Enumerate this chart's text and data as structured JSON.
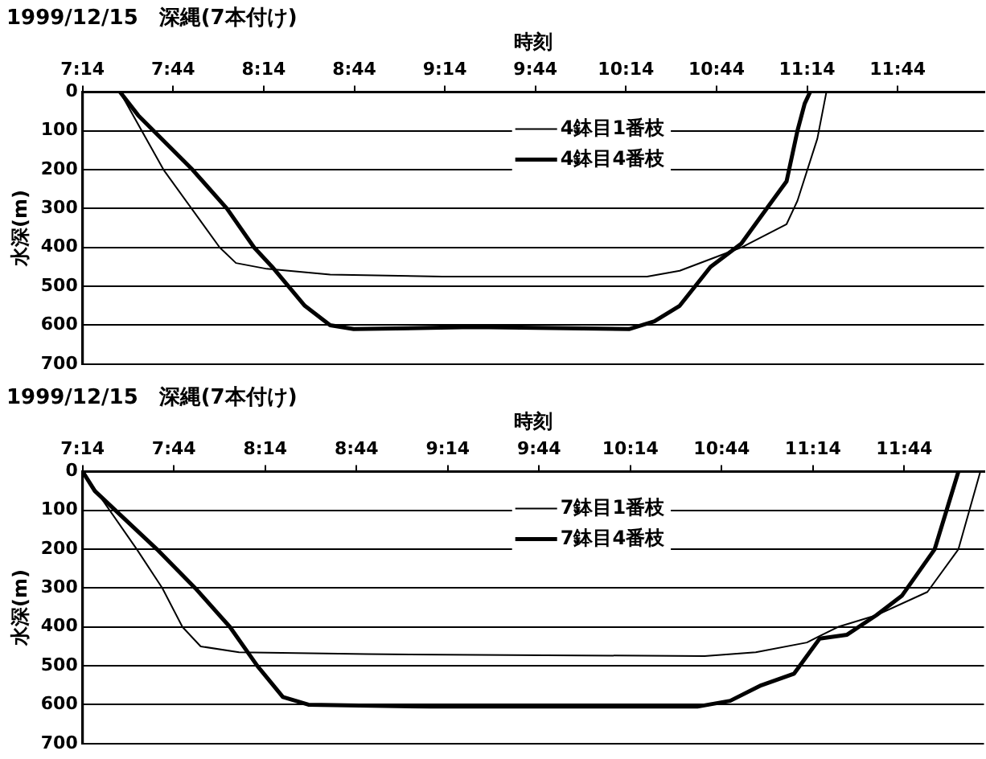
{
  "chart_data": [
    {
      "type": "line",
      "title": "1999/12/15　深縄(7本付け)",
      "xlabel": "時刻",
      "ylabel": "水深(m)",
      "xlim": [
        7.2333,
        12.21
      ],
      "ylim": [
        700,
        0
      ],
      "xticks": [
        {
          "value": 7.2333,
          "label": "7:14"
        },
        {
          "value": 7.7333,
          "label": "7:44"
        },
        {
          "value": 8.2333,
          "label": "8:14"
        },
        {
          "value": 8.7333,
          "label": "8:44"
        },
        {
          "value": 9.2333,
          "label": "9:14"
        },
        {
          "value": 9.7333,
          "label": "9:44"
        },
        {
          "value": 10.2333,
          "label": "10:14"
        },
        {
          "value": 10.7333,
          "label": "10:44"
        },
        {
          "value": 11.2333,
          "label": "11:14"
        },
        {
          "value": 11.7333,
          "label": "11:44"
        }
      ],
      "yticks": [
        0,
        100,
        200,
        300,
        400,
        500,
        600,
        700
      ],
      "grid": "y",
      "legend": "top",
      "marker": "none",
      "line_style": "solid",
      "series": [
        {
          "name": "4鉢目1番枝",
          "color": "#000000",
          "x": [
            7.44,
            7.68,
            7.99,
            8.08,
            8.25,
            8.6,
            9.22,
            10.35,
            10.53,
            10.7,
            10.87,
            11.12,
            11.18,
            11.29,
            11.34
          ],
          "values": [
            0,
            200,
            400,
            440,
            455,
            470,
            475,
            475,
            460,
            430,
            400,
            340,
            280,
            120,
            0
          ]
        },
        {
          "name": "4鉢目4番枝",
          "color": "#000000",
          "x": [
            7.44,
            7.54,
            7.84,
            8.03,
            8.18,
            8.28,
            8.46,
            8.6,
            8.73,
            9.39,
            10.25,
            10.39,
            10.53,
            10.7,
            10.87,
            11.01,
            11.12,
            11.18,
            11.22,
            11.25
          ],
          "values": [
            0,
            60,
            200,
            300,
            400,
            450,
            550,
            600,
            610,
            605,
            610,
            590,
            550,
            450,
            390,
            300,
            230,
            100,
            30,
            0
          ]
        }
      ]
    },
    {
      "type": "line",
      "title": "1999/12/15　深縄(7本付け)",
      "xlabel": "時刻",
      "ylabel": "水深(m)",
      "xlim": [
        7.2333,
        12.17
      ],
      "ylim": [
        700,
        0
      ],
      "xticks": [
        {
          "value": 7.2333,
          "label": "7:14"
        },
        {
          "value": 7.7333,
          "label": "7:44"
        },
        {
          "value": 8.2333,
          "label": "8:14"
        },
        {
          "value": 8.7333,
          "label": "8:44"
        },
        {
          "value": 9.2333,
          "label": "9:14"
        },
        {
          "value": 9.7333,
          "label": "9:44"
        },
        {
          "value": 10.2333,
          "label": "10:14"
        },
        {
          "value": 10.7333,
          "label": "10:44"
        },
        {
          "value": 11.2333,
          "label": "11:14"
        },
        {
          "value": 11.7333,
          "label": "11:44"
        }
      ],
      "yticks": [
        0,
        100,
        200,
        300,
        400,
        500,
        600,
        700
      ],
      "grid": "y",
      "legend": "top",
      "marker": "none",
      "line_style": "solid",
      "series": [
        {
          "name": "7鉢目1番枝",
          "color": "#000000",
          "x": [
            7.2333,
            7.53,
            7.67,
            7.78,
            7.88,
            8.09,
            8.79,
            10.64,
            10.92,
            11.2,
            11.37,
            11.58,
            11.86,
            12.03,
            12.15
          ],
          "values": [
            0,
            200,
            300,
            400,
            450,
            465,
            470,
            475,
            465,
            440,
            400,
            370,
            310,
            200,
            0
          ]
        },
        {
          "name": "7鉢目4番枝",
          "color": "#000000",
          "x": [
            7.2333,
            7.3,
            7.64,
            7.85,
            8.04,
            8.19,
            8.33,
            8.47,
            9.14,
            10.6,
            10.78,
            10.95,
            11.13,
            11.27,
            11.42,
            11.58,
            11.72,
            11.9,
            12.03
          ],
          "values": [
            0,
            50,
            200,
            300,
            400,
            500,
            580,
            600,
            605,
            605,
            590,
            550,
            520,
            430,
            420,
            370,
            320,
            200,
            0
          ]
        }
      ]
    }
  ]
}
